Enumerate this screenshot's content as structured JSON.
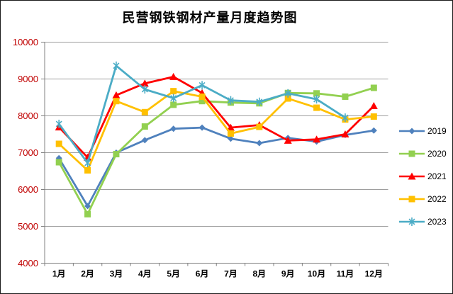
{
  "title": "民营钢铁钢材产量月度趋势图",
  "chart_data": {
    "type": "line",
    "title": "民营钢铁钢材产量月度趋势图",
    "categories": [
      "1月",
      "2月",
      "3月",
      "4月",
      "5月",
      "6月",
      "7月",
      "8月",
      "9月",
      "10月",
      "11月",
      "12月"
    ],
    "series": [
      {
        "name": "2019",
        "color": "#4F81BD",
        "marker": "diamond",
        "values": [
          6850,
          5550,
          7000,
          7340,
          7650,
          7680,
          7380,
          7260,
          7400,
          7300,
          7480,
          7600
        ]
      },
      {
        "name": "2020",
        "color": "#92D050",
        "marker": "square",
        "values": [
          6740,
          5330,
          6960,
          7710,
          8300,
          8400,
          8360,
          8340,
          8620,
          8610,
          8520,
          8760
        ]
      },
      {
        "name": "2021",
        "color": "#FF0000",
        "marker": "triangle",
        "values": [
          7690,
          6870,
          8560,
          8880,
          9060,
          8620,
          7680,
          7750,
          7330,
          7360,
          7500,
          8270
        ]
      },
      {
        "name": "2022",
        "color": "#FFC000",
        "marker": "square",
        "values": [
          7240,
          6520,
          8400,
          8100,
          8670,
          8520,
          7520,
          7700,
          8470,
          8220,
          7900,
          7980
        ]
      },
      {
        "name": "2023",
        "color": "#4BACC6",
        "marker": "star",
        "values": [
          7780,
          6720,
          9360,
          8720,
          8480,
          8830,
          8420,
          8380,
          8610,
          8450,
          7950,
          null
        ]
      }
    ],
    "ylim": [
      4000,
      10000
    ],
    "ytick_step": 1000,
    "ytick_labels": [
      "4000",
      "5000",
      "6000",
      "7000",
      "8000",
      "9000",
      "10000"
    ],
    "grid": "horizontal-only",
    "legend_position": "right",
    "colors": {
      "y_axis_label": "#C00000",
      "x_axis_label": "#000000",
      "gridline": "#9E9E9E",
      "axis_line": "#808080",
      "title": "#000000"
    }
  }
}
